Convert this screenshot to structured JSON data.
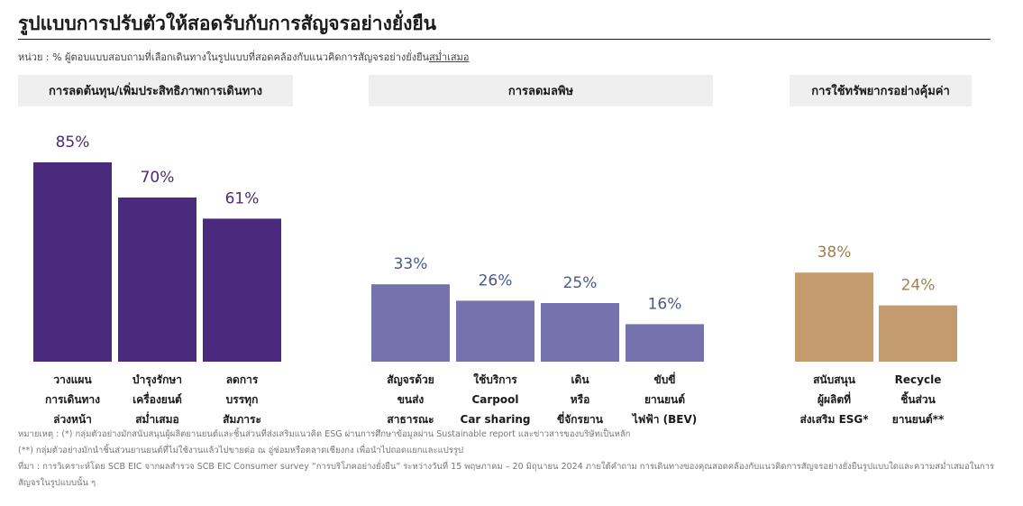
{
  "title": "รูปแบบการปรับตัวให้สอดรับกับการสัญจรอย่างยั่งยืน",
  "unit_note": {
    "prefix": "หน่วย : % ผู้ตอบแบบสอบถามที่เลือกเดินทางในรูปแบบที่สอดคล้องกับแนวคิดการสัญจรอย่างยั่งยืน",
    "underlined": "สม่ำเสมอ"
  },
  "groups": [
    {
      "label": "การลดต้นทุน/เพิ่มประสิทธิภาพการเดินทาง",
      "color": "#4a2a7d",
      "label_color": "#4a2a7d"
    },
    {
      "label": "การลดมลพิษ",
      "color": "#7572ad",
      "label_color": "#4a5a8a"
    },
    {
      "label": "การใช้ทรัพยากรอย่างคุ้มค่า",
      "color": "#c49b6f",
      "label_color": "#a08050"
    }
  ],
  "chart_data": {
    "type": "bar",
    "ylim": [
      0,
      100
    ],
    "categories": [
      {
        "label_lines": [
          "วางแผน",
          "การเดินทาง",
          "ล่วงหน้า"
        ],
        "group": 0,
        "value": 85,
        "value_label": "85%"
      },
      {
        "label_lines": [
          "บำรุงรักษา",
          "เครื่องยนต์",
          "สม่ำเสมอ"
        ],
        "group": 0,
        "value": 70,
        "value_label": "70%"
      },
      {
        "label_lines": [
          "ลดการ",
          "บรรทุก",
          "สัมภาระ"
        ],
        "group": 0,
        "value": 61,
        "value_label": "61%"
      },
      {
        "label_lines": [
          "สัญจรด้วย",
          "ขนส่ง",
          "สาธารณะ"
        ],
        "group": 1,
        "value": 33,
        "value_label": "33%"
      },
      {
        "label_lines": [
          "ใช้บริการ",
          "Carpool",
          "Car sharing"
        ],
        "group": 1,
        "value": 26,
        "value_label": "26%"
      },
      {
        "label_lines": [
          "เดิน",
          "หรือ",
          "ขี่จักรยาน"
        ],
        "group": 1,
        "value": 25,
        "value_label": "25%"
      },
      {
        "label_lines": [
          "ขับขี่",
          "ยานยนต์",
          "ไฟฟ้า (BEV)"
        ],
        "group": 1,
        "value": 16,
        "value_label": "16%"
      },
      {
        "label_lines": [
          "สนับสนุน",
          "ผู้ผลิตที่",
          "ส่งเสริม ESG*"
        ],
        "group": 2,
        "value": 38,
        "value_label": "38%"
      },
      {
        "label_lines": [
          "Recycle",
          "ชิ้นส่วน",
          "ยานยนต์**"
        ],
        "group": 2,
        "value": 24,
        "value_label": "24%"
      }
    ]
  },
  "notes": {
    "note1": "หมายเหตุ : (*) กลุ่มตัวอย่างมักสนับสนุนผู้ผลิตยานยนต์และชิ้นส่วนที่ส่งเสริมแนวคิด ESG ผ่านการศึกษาข้อมูลผ่าน Sustainable report และข่าวสารของบริษัทเป็นหลัก",
    "note2": "(**) กลุ่มตัวอย่างมักนำชิ้นส่วนยานยนต์ที่ไม่ใช้งานแล้วไปขายต่อ ณ อู่ซ่อมหรือตลาดเชียงกง เพื่อนำไปถอดแยกและแปรรูป",
    "source": "ที่มา : การวิเคราะห์โดย SCB EIC จากผลสำรวจ SCB EIC Consumer survey “การบริโภคอย่างยั่งยืน” ระหว่างวันที่ 15 พฤษภาคม – 20 มิถุนายน 2024 ภายใต้คำถาม การเดินทางของคุณสอดคล้องกับแนวคิดการสัญจรอย่างยั่งยืนรูปแบบใดและความสม่ำเสมอในการสัญจรในรูปแบบนั้น ๆ"
  }
}
